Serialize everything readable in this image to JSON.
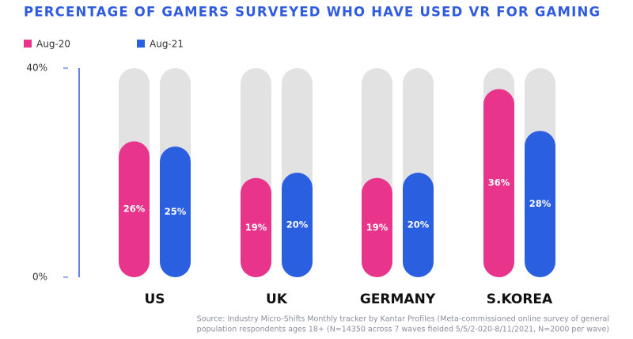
{
  "chart_data": {
    "type": "bar",
    "title": "PERCENTAGE OF GAMERS SURVEYED WHO HAVE USED VR FOR GAMING",
    "categories": [
      "US",
      "UK",
      "GERMANY",
      "S.KOREA"
    ],
    "series": [
      {
        "name": "Aug-20",
        "color": "#e8348a",
        "values": [
          26,
          19,
          19,
          36
        ],
        "value_labels": [
          "26%",
          "19%",
          "19%",
          "36%"
        ]
      },
      {
        "name": "Aug-21",
        "color": "#2a5fe0",
        "values": [
          25,
          20,
          20,
          28
        ],
        "value_labels": [
          "25%",
          "20%",
          "20%",
          "28%"
        ]
      }
    ],
    "ylim": [
      0,
      40
    ],
    "yticks": [
      {
        "value": 0,
        "label": "0%"
      },
      {
        "value": 40,
        "label": "40%"
      }
    ],
    "track_color": "#e2e2e2",
    "source": [
      "Source: Industry Micro-Shifts Monthly tracker by Kantar Profiles (Meta-commissioned online survey of general",
      "population respondents ages 18+ (N=14350 across 7 waves fielded 5/5/2-020-8/11/2021, N=2000 per wave)"
    ]
  }
}
